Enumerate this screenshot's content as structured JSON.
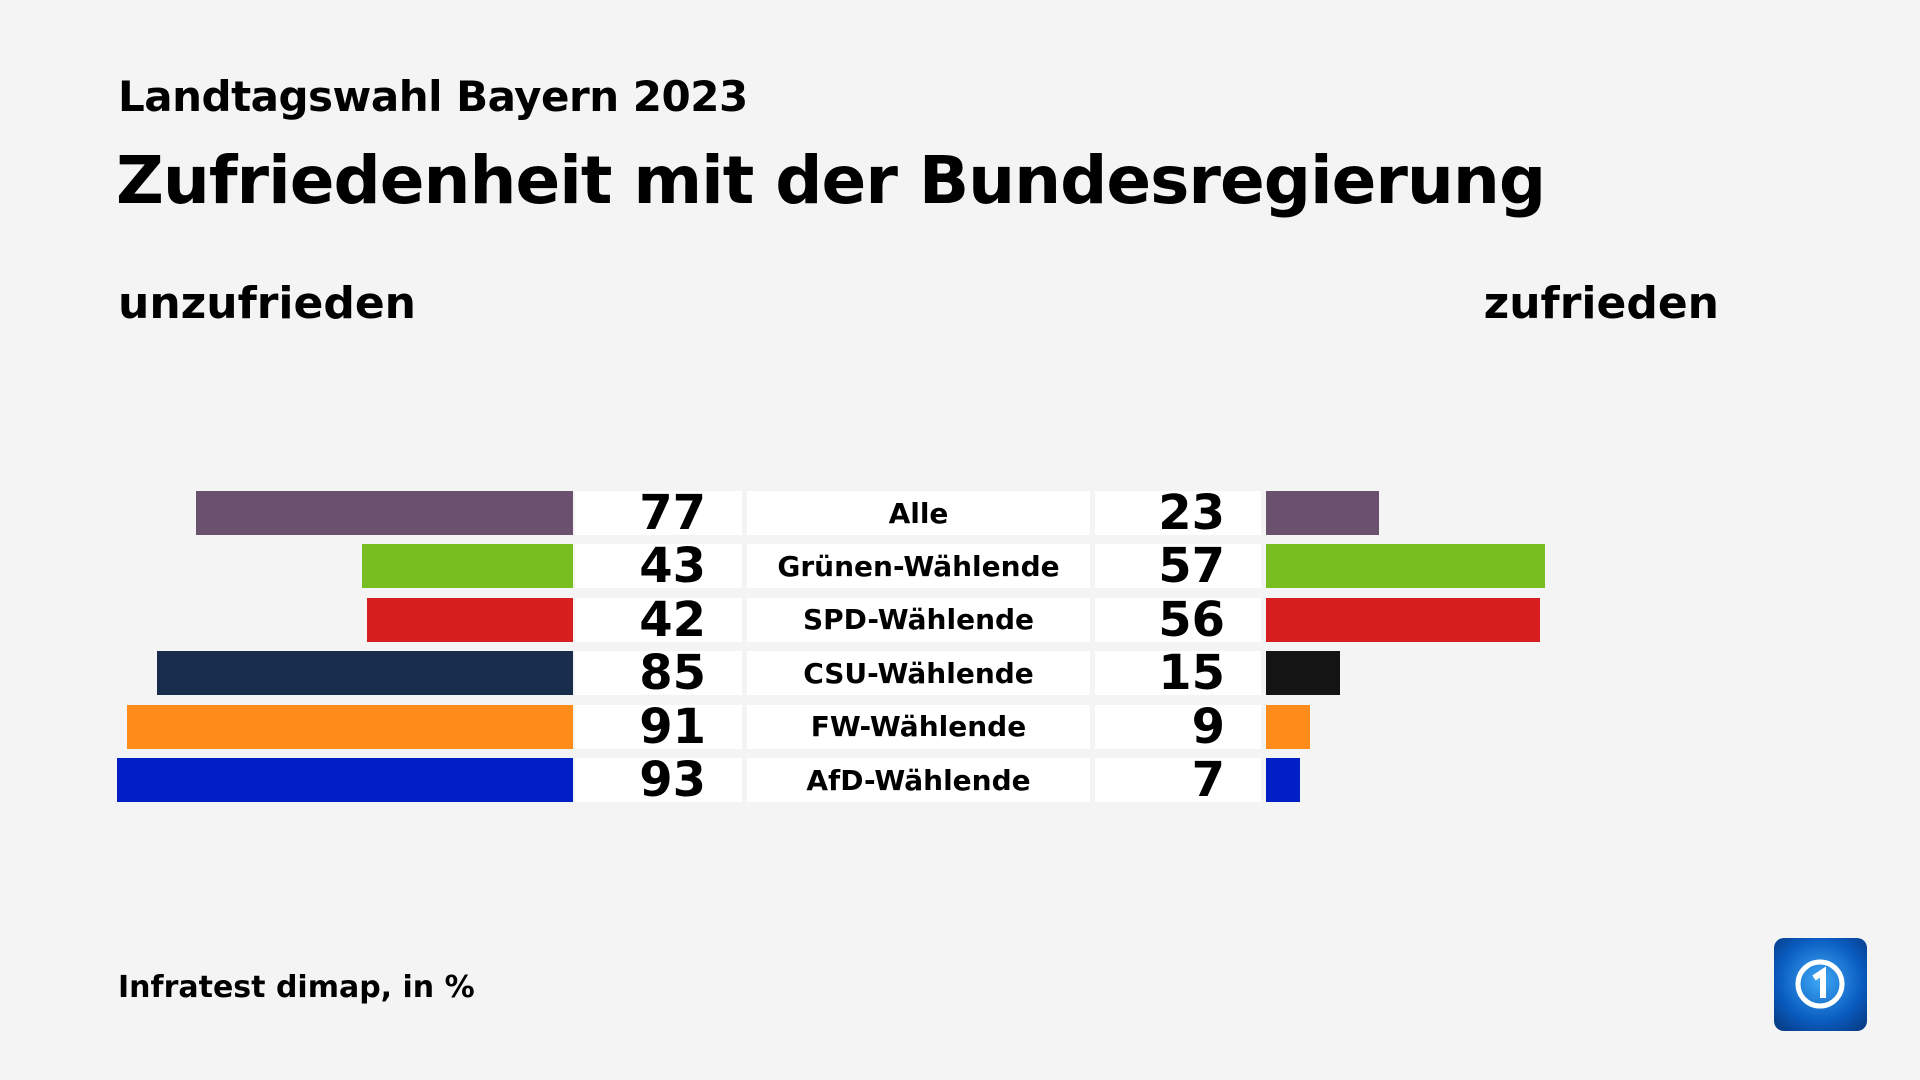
{
  "header": {
    "subtitle": "Landtagswahl Bayern 2023",
    "title": "Zufriedenheit mit der Bundesregierung"
  },
  "chart_data": {
    "type": "bar",
    "orientation": "diverging-horizontal",
    "title": "Zufriedenheit mit der Bundesregierung",
    "subtitle": "Landtagswahl Bayern 2023",
    "left_label": "unzufrieden",
    "right_label": "zufrieden",
    "categories": [
      "Alle",
      "Grünen-Wählende",
      "SPD-Wählende",
      "CSU-Wählende",
      "FW-Wählende",
      "AfD-Wählende"
    ],
    "series": [
      {
        "name": "unzufrieden",
        "values": [
          77,
          43,
          42,
          85,
          91,
          93
        ]
      },
      {
        "name": "zufrieden",
        "values": [
          23,
          57,
          56,
          15,
          9,
          7
        ]
      }
    ],
    "colors": [
      "#6a526f",
      "#78be20",
      "#d71f1f",
      "#182d4b",
      "#ff8c1a",
      "#001fc4"
    ],
    "right_colors": [
      "#6a526f",
      "#78be20",
      "#d71f1f",
      "#141414",
      "#ff8c1a",
      "#001fc4"
    ],
    "grid": false
  },
  "footer": {
    "source": "Infratest dimap, in %"
  },
  "logo": {
    "text": "1"
  }
}
